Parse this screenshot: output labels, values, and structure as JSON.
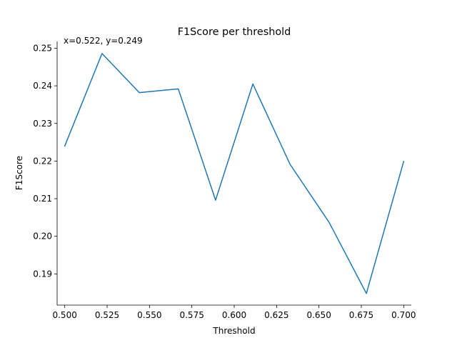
{
  "chart_data": {
    "type": "line",
    "title": "F1Score per threshold",
    "xlabel": "Threshold",
    "ylabel": "F1Score",
    "annotation": "x=0.522, y=0.249",
    "xlim": [
      0.4955,
      0.7045
    ],
    "ylim": [
      0.1817,
      0.2518
    ],
    "xticks": [
      0.5,
      0.525,
      0.55,
      0.575,
      0.6,
      0.625,
      0.65,
      0.675,
      0.7
    ],
    "xtick_labels": [
      "0.500",
      "0.525",
      "0.550",
      "0.575",
      "0.600",
      "0.625",
      "0.650",
      "0.675",
      "0.700"
    ],
    "yticks": [
      0.19,
      0.2,
      0.21,
      0.22,
      0.23,
      0.24,
      0.25
    ],
    "ytick_labels": [
      "0.19",
      "0.20",
      "0.21",
      "0.22",
      "0.23",
      "0.24",
      "0.25"
    ],
    "grid": false,
    "series": [
      {
        "color": "#1f77b4",
        "x": [
          0.5,
          0.522,
          0.544,
          0.567,
          0.589,
          0.611,
          0.633,
          0.656,
          0.678,
          0.7
        ],
        "y": [
          0.224,
          0.2486,
          0.2382,
          0.2392,
          0.2096,
          0.2405,
          0.2191,
          0.2037,
          0.1848,
          0.2199
        ]
      }
    ]
  }
}
